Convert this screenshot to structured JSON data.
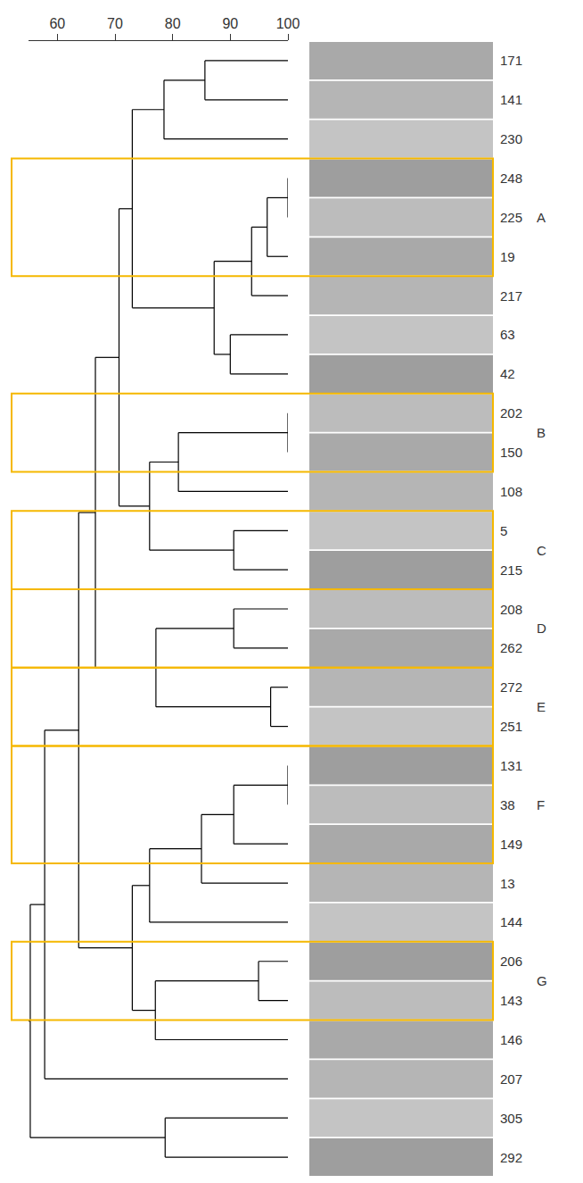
{
  "chart_data": {
    "type": "dendrogram",
    "xlim": [
      55,
      100
    ],
    "xticks": [
      60,
      70,
      80,
      90,
      100
    ],
    "tick_labels": "x",
    "grid": false,
    "color": "#000000",
    "tree": {
      "similarity": 55.3,
      "children": [
        {
          "similarity": 57.8,
          "children": [
            {
              "similarity": 63.7,
              "children": [
                {
                  "similarity": 66.6,
                  "children": [
                    {
                      "similarity": 70.7,
                      "children": [
                        {
                          "similarity": 73,
                          "children": [
                            {
                              "similarity": 78.5,
                              "children": [
                                {
                                  "similarity": 85.6,
                                  "children": [
                                    "171",
                                    "141"
                                  ]
                                },
                                "230"
                              ]
                            },
                            {
                              "similarity": 87.2,
                              "children": [
                                {
                                  "similarity": 93.7,
                                  "children": [
                                    {
                                      "similarity": 96.4,
                                      "children": [
                                        {
                                          "similarity": 100,
                                          "children": [
                                            "248",
                                            "225"
                                          ]
                                        },
                                        "19"
                                      ]
                                    },
                                    "217"
                                  ]
                                },
                                {
                                  "similarity": 90,
                                  "children": [
                                    "63",
                                    "42"
                                  ]
                                }
                              ]
                            }
                          ]
                        },
                        {
                          "similarity": 76,
                          "children": [
                            {
                              "similarity": 81,
                              "children": [
                                {
                                  "similarity": 100,
                                  "children": [
                                    "202",
                                    "150"
                                  ]
                                },
                                "108"
                              ]
                            },
                            {
                              "similarity": 90.6,
                              "children": [
                                "5",
                                "215"
                              ]
                            }
                          ]
                        }
                      ]
                    },
                    {
                      "similarity": 77.1,
                      "children": [
                        {
                          "similarity": 90.6,
                          "children": [
                            "208",
                            "262"
                          ]
                        },
                        {
                          "similarity": 97,
                          "children": [
                            "272",
                            "251"
                          ]
                        }
                      ]
                    }
                  ]
                },
                {
                  "similarity": 73,
                  "children": [
                    {
                      "similarity": 76,
                      "children": [
                        {
                          "similarity": 85,
                          "children": [
                            {
                              "similarity": 90.6,
                              "children": [
                                {
                                  "similarity": 100,
                                  "children": [
                                    "131",
                                    "38"
                                  ]
                                },
                                "149"
                              ]
                            },
                            "13"
                          ]
                        },
                        "144"
                      ]
                    },
                    {
                      "similarity": 77,
                      "children": [
                        {
                          "similarity": 94.9,
                          "children": [
                            "206",
                            "143"
                          ]
                        },
                        "146"
                      ]
                    }
                  ]
                }
              ]
            },
            "207"
          ]
        },
        {
          "similarity": 78.7,
          "children": [
            "305",
            "292"
          ]
        }
      ]
    },
    "clusters": [
      {
        "label": "A",
        "members": [
          "248",
          "225",
          "19"
        ],
        "color": "#f5b800"
      },
      {
        "label": "B",
        "members": [
          "202",
          "150"
        ],
        "color": "#f5b800"
      },
      {
        "label": "C",
        "members": [
          "5",
          "215"
        ],
        "color": "#f5b800"
      },
      {
        "label": "D",
        "members": [
          "208",
          "262"
        ],
        "color": "#f5b800"
      },
      {
        "label": "E",
        "members": [
          "272",
          "251"
        ],
        "color": "#f5b800"
      },
      {
        "label": "F",
        "members": [
          "131",
          "38",
          "149"
        ],
        "color": "#f5b800"
      },
      {
        "label": "G",
        "members": [
          "206",
          "143"
        ],
        "color": "#f5b800"
      }
    ]
  }
}
